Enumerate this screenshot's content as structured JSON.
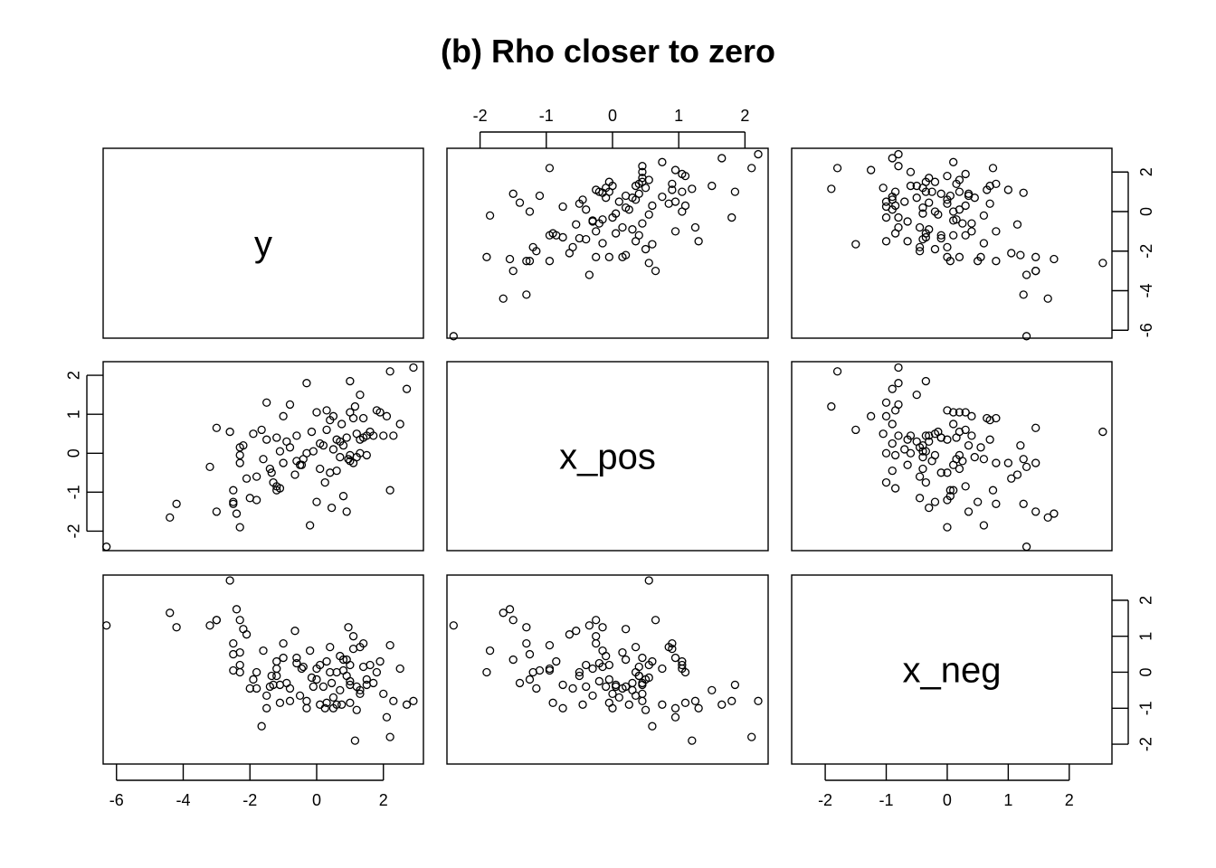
{
  "chart_data": {
    "type": "scatter-matrix",
    "title": "(b) Rho closer to zero",
    "variables": [
      "y",
      "x_pos",
      "x_neg"
    ],
    "ranges": {
      "y": [
        -6.4,
        3.2
      ],
      "x_pos": [
        -2.5,
        2.35
      ],
      "x_neg": [
        -2.55,
        2.7
      ]
    },
    "ticks": {
      "y": [
        -6,
        -4,
        -2,
        0,
        2
      ],
      "x_pos": [
        -2,
        -1,
        0,
        1,
        2
      ],
      "x_neg": [
        -2,
        -1,
        0,
        1,
        2
      ]
    },
    "tick_labels": {
      "y": [
        "-6",
        "-4",
        "-2",
        "0",
        "2"
      ],
      "x_pos": [
        "-2",
        "-1",
        "0",
        "1",
        "2"
      ],
      "x_neg": [
        "-2",
        "-1",
        "0",
        "1",
        "2"
      ]
    },
    "points": [
      {
        "y": -6.3,
        "x_pos": -2.4,
        "x_neg": 1.3
      },
      {
        "y": -4.4,
        "x_pos": -1.65,
        "x_neg": 1.65
      },
      {
        "y": -4.2,
        "x_pos": -1.3,
        "x_neg": 1.25
      },
      {
        "y": -3.2,
        "x_pos": -0.35,
        "x_neg": 1.3
      },
      {
        "y": -3.0,
        "x_pos": -1.5,
        "x_neg": 1.45
      },
      {
        "y": -3.0,
        "x_pos": 0.65,
        "x_neg": 1.45
      },
      {
        "y": -2.6,
        "x_pos": 0.55,
        "x_neg": 2.55
      },
      {
        "y": -2.5,
        "x_pos": -1.25,
        "x_neg": 0.5
      },
      {
        "y": -2.5,
        "x_pos": -0.95,
        "x_neg": 0.05
      },
      {
        "y": -2.5,
        "x_pos": -1.3,
        "x_neg": 0.8
      },
      {
        "y": -2.4,
        "x_pos": -1.55,
        "x_neg": 1.75
      },
      {
        "y": -2.3,
        "x_pos": -0.25,
        "x_neg": 1.45
      },
      {
        "y": -2.3,
        "x_pos": -1.9,
        "x_neg": 0.0
      },
      {
        "y": -2.3,
        "x_pos": 0.15,
        "x_neg": 0.55
      },
      {
        "y": -2.3,
        "x_pos": -0.05,
        "x_neg": 0.2
      },
      {
        "y": -2.1,
        "x_pos": -0.65,
        "x_neg": 1.05
      },
      {
        "y": -2.0,
        "x_pos": -1.15,
        "x_neg": -0.45
      },
      {
        "y": -1.9,
        "x_pos": 0.5,
        "x_neg": -0.2
      },
      {
        "y": -1.8,
        "x_pos": -0.6,
        "x_neg": -0.45
      },
      {
        "y": -1.8,
        "x_pos": -1.2,
        "x_neg": 0.0
      },
      {
        "y": -1.6,
        "x_pos": -0.15,
        "x_neg": 0.6
      },
      {
        "y": -1.5,
        "x_pos": 0.35,
        "x_neg": -0.65
      },
      {
        "y": -1.5,
        "x_pos": 1.3,
        "x_neg": -1.0
      },
      {
        "y": -1.4,
        "x_pos": -0.4,
        "x_neg": -0.4
      },
      {
        "y": -1.3,
        "x_pos": -0.75,
        "x_neg": -0.35
      },
      {
        "y": -1.2,
        "x_pos": -0.95,
        "x_neg": 0.1
      },
      {
        "y": -1.2,
        "x_pos": -0.85,
        "x_neg": 0.3
      },
      {
        "y": -1.2,
        "x_pos": 0.4,
        "x_neg": -0.1
      },
      {
        "y": -1.1,
        "x_pos": 0.05,
        "x_neg": -0.35
      },
      {
        "y": -1.1,
        "x_pos": -0.9,
        "x_neg": -0.85
      },
      {
        "y": -1.0,
        "x_pos": -0.25,
        "x_neg": 0.8
      },
      {
        "y": -1.0,
        "x_pos": 0.95,
        "x_neg": 0.4
      },
      {
        "y": -0.9,
        "x_pos": 0.3,
        "x_neg": -0.3
      },
      {
        "y": -0.8,
        "x_pos": 0.15,
        "x_neg": -0.45
      },
      {
        "y": -0.8,
        "x_pos": 1.25,
        "x_neg": -0.8
      },
      {
        "y": -0.6,
        "x_pos": -0.2,
        "x_neg": 0.25
      },
      {
        "y": -0.6,
        "x_pos": 0.45,
        "x_neg": 0.4
      },
      {
        "y": -0.5,
        "x_pos": -0.3,
        "x_neg": -0.65
      },
      {
        "y": -0.4,
        "x_pos": -0.15,
        "x_neg": 0.15
      },
      {
        "y": -0.3,
        "x_pos": 0.0,
        "x_neg": -1.0
      },
      {
        "y": -0.3,
        "x_pos": 1.8,
        "x_neg": -0.8
      },
      {
        "y": -0.2,
        "x_pos": -1.85,
        "x_neg": 0.6
      },
      {
        "y": -0.1,
        "x_pos": 0.05,
        "x_neg": -0.4
      },
      {
        "y": 0.0,
        "x_pos": -1.25,
        "x_neg": -0.2
      },
      {
        "y": 0.0,
        "x_pos": 1.05,
        "x_neg": 0.1
      },
      {
        "y": 0.1,
        "x_pos": -0.4,
        "x_neg": 0.2
      },
      {
        "y": 0.1,
        "x_pos": 0.25,
        "x_neg": -0.9
      },
      {
        "y": 0.2,
        "x_pos": 0.2,
        "x_neg": -0.4
      },
      {
        "y": 0.3,
        "x_pos": 1.1,
        "x_neg": -0.85
      },
      {
        "y": 0.3,
        "x_pos": 0.6,
        "x_neg": 0.3
      },
      {
        "y": 0.4,
        "x_pos": 0.85,
        "x_neg": 0.7
      },
      {
        "y": 0.4,
        "x_pos": -0.5,
        "x_neg": 0.0
      },
      {
        "y": 0.5,
        "x_pos": 0.95,
        "x_neg": -1.0
      },
      {
        "y": 0.5,
        "x_pos": 0.1,
        "x_neg": -0.7
      },
      {
        "y": 0.6,
        "x_pos": -0.45,
        "x_neg": -0.9
      },
      {
        "y": 0.6,
        "x_pos": 0.35,
        "x_neg": 0.0
      },
      {
        "y": 0.7,
        "x_pos": 0.3,
        "x_neg": -0.5
      },
      {
        "y": 0.7,
        "x_pos": -0.1,
        "x_neg": 0.45
      },
      {
        "y": 0.8,
        "x_pos": -1.1,
        "x_neg": 0.05
      },
      {
        "y": 0.8,
        "x_pos": 0.2,
        "x_neg": 0.35
      },
      {
        "y": 0.9,
        "x_pos": -1.5,
        "x_neg": 0.35
      },
      {
        "y": 0.9,
        "x_pos": 0.4,
        "x_neg": -0.1
      },
      {
        "y": 1.0,
        "x_pos": 1.05,
        "x_neg": 0.2
      },
      {
        "y": 1.0,
        "x_pos": -0.2,
        "x_neg": -0.25
      },
      {
        "y": 1.0,
        "x_pos": 1.85,
        "x_neg": -0.35
      },
      {
        "y": 1.0,
        "x_pos": -0.05,
        "x_neg": -0.85
      },
      {
        "y": 1.1,
        "x_pos": -0.25,
        "x_neg": 1.0
      },
      {
        "y": 1.1,
        "x_pos": 0.9,
        "x_neg": 0.65
      },
      {
        "y": 1.2,
        "x_pos": -0.1,
        "x_neg": -0.4
      },
      {
        "y": 1.2,
        "x_pos": 0.5,
        "x_neg": -1.05
      },
      {
        "y": 1.3,
        "x_pos": 1.5,
        "x_neg": -0.5
      },
      {
        "y": 1.3,
        "x_pos": 0.35,
        "x_neg": 0.7
      },
      {
        "y": 1.3,
        "x_pos": 0.0,
        "x_neg": -0.6
      },
      {
        "y": 1.4,
        "x_pos": 0.4,
        "x_neg": 0.15
      },
      {
        "y": 1.4,
        "x_pos": 0.9,
        "x_neg": 0.8
      },
      {
        "y": 1.5,
        "x_pos": 0.45,
        "x_neg": -0.35
      },
      {
        "y": 1.5,
        "x_pos": -0.05,
        "x_neg": -0.2
      },
      {
        "y": 1.6,
        "x_pos": 0.55,
        "x_neg": 0.2
      },
      {
        "y": 1.7,
        "x_pos": 0.45,
        "x_neg": -0.3
      },
      {
        "y": 1.9,
        "x_pos": 1.05,
        "x_neg": 0.3
      },
      {
        "y": 2.0,
        "x_pos": 0.45,
        "x_neg": -0.6
      },
      {
        "y": 2.1,
        "x_pos": 0.95,
        "x_neg": -1.25
      },
      {
        "y": 2.2,
        "x_pos": 2.1,
        "x_neg": -1.8
      },
      {
        "y": 2.2,
        "x_pos": -0.95,
        "x_neg": 0.75
      },
      {
        "y": 2.3,
        "x_pos": 0.45,
        "x_neg": -0.8
      },
      {
        "y": 2.5,
        "x_pos": 0.75,
        "x_neg": 0.1
      },
      {
        "y": 2.7,
        "x_pos": 1.65,
        "x_neg": -0.9
      },
      {
        "y": 2.9,
        "x_pos": 2.2,
        "x_neg": -0.8
      },
      {
        "y": 0.45,
        "x_pos": -1.4,
        "x_neg": -0.3
      },
      {
        "y": 0.75,
        "x_pos": 0.75,
        "x_neg": -0.9
      },
      {
        "y": -0.65,
        "x_pos": -0.55,
        "x_neg": 1.15
      },
      {
        "y": -1.65,
        "x_pos": 0.6,
        "x_neg": -1.5
      },
      {
        "y": 0.25,
        "x_pos": -0.75,
        "x_neg": -1.0
      },
      {
        "y": 1.8,
        "x_pos": 1.1,
        "x_neg": 0.0
      },
      {
        "y": -0.45,
        "x_pos": -0.3,
        "x_neg": 0.1
      },
      {
        "y": -2.2,
        "x_pos": 0.2,
        "x_neg": 1.2
      },
      {
        "y": 1.15,
        "x_pos": 1.2,
        "x_neg": -1.9
      },
      {
        "y": -0.15,
        "x_pos": 0.55,
        "x_neg": -0.15
      },
      {
        "y": 0.95,
        "x_pos": -0.15,
        "x_neg": 1.25
      },
      {
        "y": -1.35,
        "x_pos": -0.5,
        "x_neg": -0.1
      }
    ]
  }
}
